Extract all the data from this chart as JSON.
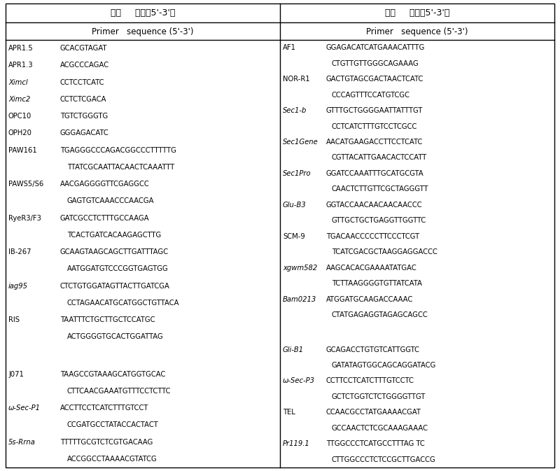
{
  "left_header1": "引物     序列（5'-3'）",
  "left_header2": "Primer   sequence (5'-3')",
  "right_header1": "引物     序列（5'-3'）",
  "right_header2": "Primer   sequence (5'-3')",
  "left_entries": [
    {
      "primer": "APR1.5",
      "seq1": "GCACGTAGAT",
      "seq2": null,
      "italic": false
    },
    {
      "primer": "APR1.3",
      "seq1": "ACGCCCAGAC",
      "seq2": null,
      "italic": false
    },
    {
      "primer": "Ximcl",
      "seq1": "CCTCCTCATC",
      "seq2": null,
      "italic": true
    },
    {
      "primer": "Ximc2",
      "seq1": "CCTCTCGACA",
      "seq2": null,
      "italic": true
    },
    {
      "primer": "OPC10",
      "seq1": "TGTCTGGGTG",
      "seq2": null,
      "italic": false
    },
    {
      "primer": "OPH20",
      "seq1": "GGGAGACATC",
      "seq2": null,
      "italic": false
    },
    {
      "primer": "PAW161",
      "seq1": "TGAGGGCCCAGACGGCCCTTTTTG",
      "seq2": "TTATCGCAATTACAACTCAAATTT",
      "italic": false
    },
    {
      "primer": "PAWS5/S6",
      "seq1": "AACGAGGGGTTCGAGGCC",
      "seq2": "GAGTGTCAAACCCAACGA",
      "italic": false
    },
    {
      "primer": "RyeR3/F3",
      "seq1": "GATCGCCTCTTTGCCAAGA",
      "seq2": "TCACTGATCACAAGAGCTTG",
      "italic": false
    },
    {
      "primer": "IB-267",
      "seq1": "GCAAGTAAGCAGCTTGATTTAGC",
      "seq2": "AATGGATGTCCCGGTGAGTGG",
      "italic": false
    },
    {
      "primer": "iag95",
      "seq1": "CTCTGTGGATAGTTACTTGATCGA",
      "seq2": "CCTAGAACATGCATGGCTGTTACA",
      "italic": true
    },
    {
      "primer": "RIS",
      "seq1": "TAATTTCTGCTTGCTCCATGC",
      "seq2": "ACTGGGGTGCACTGGATTAG",
      "italic": false
    },
    {
      "primer": "",
      "seq1": "",
      "seq2": null,
      "italic": false
    },
    {
      "primer": "J071",
      "seq1": "TAAGCCGTAAAGCATGGTGCAC",
      "seq2": "CTTCAACGAAATGTTTCCTCTTC",
      "italic": false
    },
    {
      "primer": "ω-Sec-P1",
      "seq1": "ACCTTCCTCATCTTTGTCCT",
      "seq2": "CCGATGCCTATACCACTACT",
      "italic": true
    },
    {
      "primer": "5s-Rrna",
      "seq1": "TTTTTGCGTCTCGTGACAAG",
      "seq2": "ACCGGCCTAAAACGTATCG",
      "italic": true
    }
  ],
  "right_entries": [
    {
      "primer": "AF1",
      "seq1": "GGAGACATCATGAAACATTTG",
      "seq2": "CTGTTGTTGGGCAGAAAG",
      "italic": false
    },
    {
      "primer": "NOR-R1",
      "seq1": "GACTGTAGCGACTAACTCATC",
      "seq2": "CCCAGTTTCCATGTCGC",
      "italic": false
    },
    {
      "primer": "Sec1-b",
      "seq1": "GTTTGCTGGGGAATTATTTGT",
      "seq2": "CCTCATCTTTGTCCTCGCC",
      "italic": true
    },
    {
      "primer": "Sec1Gene",
      "seq1": "AACATGAAGACCTTCCTCATC",
      "seq2": "CGTTACATTGAACACTCCATT",
      "italic": true
    },
    {
      "primer": "Sec1Pro",
      "seq1": "GGATCCAAATTTGCATGCGTA",
      "seq2": "CAACTCTTGTTCGCTAGGGTT",
      "italic": true
    },
    {
      "primer": "Glu-B3",
      "seq1": "GGTACCAACAACAACAACCC",
      "seq2": "GTTGCTGCTGAGGTTGGTTC",
      "italic": true
    },
    {
      "primer": "SCM-9",
      "seq1": "TGACAACCCCCTTCCCTCGT",
      "seq2": "TCATCGACGCTAAGGAGGACCC",
      "italic": false
    },
    {
      "primer": "xgwm582",
      "seq1": "AAGCACACGAAAATATGAC",
      "seq2": "TCTTAAGGGGTGTTATCATA",
      "italic": true
    },
    {
      "primer": "Bam0213",
      "seq1": "ATGGATGCAAGACCAAAC",
      "seq2": "CTATGAGAGGTAGAGCAGCC",
      "italic": true
    },
    {
      "primer": "",
      "seq1": "",
      "seq2": null,
      "italic": false
    },
    {
      "primer": "Gli-B1",
      "seq1": "GCAGACCTGTGTCATTGGTC",
      "seq2": "GATATAGTGGCAGCAGGATACG",
      "italic": true
    },
    {
      "primer": "ω-Sec-P3",
      "seq1": "CCTTCCTCATCTTTGTCCTC",
      "seq2": "GCTCTGGTCTCTGGGGTTGT",
      "italic": true
    },
    {
      "primer": "TEL",
      "seq1": "CCAACGCCTATGAAAACGAT",
      "seq2": "GCCAACTCTCGCAAAGAAAC",
      "italic": false
    },
    {
      "primer": "Pr119.1",
      "seq1": "TTGGCCCTCATGCCTTTAG TC",
      "seq2": "CTTGGCCCTCTCCGCTTGACCG",
      "italic": true
    }
  ],
  "bg_color": "#ffffff",
  "text_color": "#000000",
  "figsize": [
    8.0,
    6.73
  ],
  "dpi": 100
}
